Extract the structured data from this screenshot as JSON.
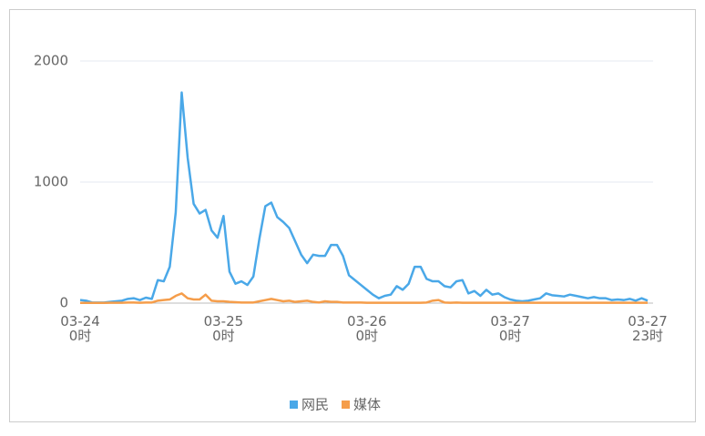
{
  "chart_data": {
    "type": "line",
    "categories": [
      "03-24\n0时",
      null,
      null,
      null,
      null,
      null,
      null,
      null,
      null,
      null,
      null,
      null,
      null,
      null,
      null,
      null,
      null,
      null,
      null,
      null,
      null,
      null,
      null,
      null,
      "03-25\n0时",
      null,
      null,
      null,
      null,
      null,
      null,
      null,
      null,
      null,
      null,
      null,
      null,
      null,
      null,
      null,
      null,
      null,
      null,
      null,
      null,
      null,
      null,
      null,
      "03-26\n0时",
      null,
      null,
      null,
      null,
      null,
      null,
      null,
      null,
      null,
      null,
      null,
      null,
      null,
      null,
      null,
      null,
      null,
      null,
      null,
      null,
      null,
      null,
      null,
      "03-27\n0时",
      null,
      null,
      null,
      null,
      null,
      null,
      null,
      null,
      null,
      null,
      null,
      null,
      null,
      null,
      null,
      null,
      null,
      null,
      null,
      null,
      null,
      null,
      "03-27\n23时"
    ],
    "series": [
      {
        "name": "网民",
        "color": "#4aa8e8",
        "values": [
          25,
          20,
          5,
          5,
          5,
          10,
          15,
          20,
          35,
          40,
          25,
          45,
          35,
          190,
          180,
          300,
          750,
          1740,
          1200,
          820,
          740,
          770,
          600,
          540,
          720,
          260,
          160,
          180,
          150,
          220,
          530,
          800,
          830,
          710,
          670,
          620,
          510,
          400,
          330,
          400,
          390,
          390,
          480,
          480,
          390,
          230,
          190,
          150,
          110,
          70,
          40,
          60,
          70,
          140,
          110,
          160,
          300,
          300,
          200,
          180,
          180,
          140,
          130,
          180,
          190,
          80,
          100,
          60,
          110,
          70,
          80,
          50,
          30,
          20,
          15,
          20,
          30,
          40,
          80,
          65,
          60,
          55,
          70,
          60,
          50,
          40,
          50,
          40,
          40,
          25,
          30,
          25,
          35,
          20,
          40,
          20
        ]
      },
      {
        "name": "媒体",
        "color": "#f59d4a",
        "values": [
          2,
          2,
          2,
          2,
          2,
          3,
          3,
          3,
          5,
          5,
          3,
          5,
          5,
          20,
          25,
          30,
          60,
          80,
          40,
          30,
          30,
          70,
          20,
          15,
          15,
          10,
          8,
          5,
          5,
          5,
          15,
          25,
          35,
          25,
          15,
          20,
          10,
          15,
          20,
          10,
          5,
          15,
          10,
          10,
          5,
          5,
          5,
          5,
          3,
          3,
          3,
          3,
          3,
          3,
          3,
          3,
          3,
          3,
          5,
          20,
          25,
          5,
          3,
          5,
          3,
          3,
          3,
          3,
          3,
          3,
          3,
          3,
          3,
          3,
          3,
          3,
          3,
          3,
          3,
          3,
          3,
          3,
          3,
          3,
          3,
          3,
          3,
          3,
          3,
          3,
          3,
          3,
          3,
          3,
          3,
          3
        ]
      }
    ],
    "ylim": [
      0,
      2000
    ],
    "yticks": [
      0,
      1000,
      2000
    ],
    "grid": true,
    "legend": "bottom"
  }
}
